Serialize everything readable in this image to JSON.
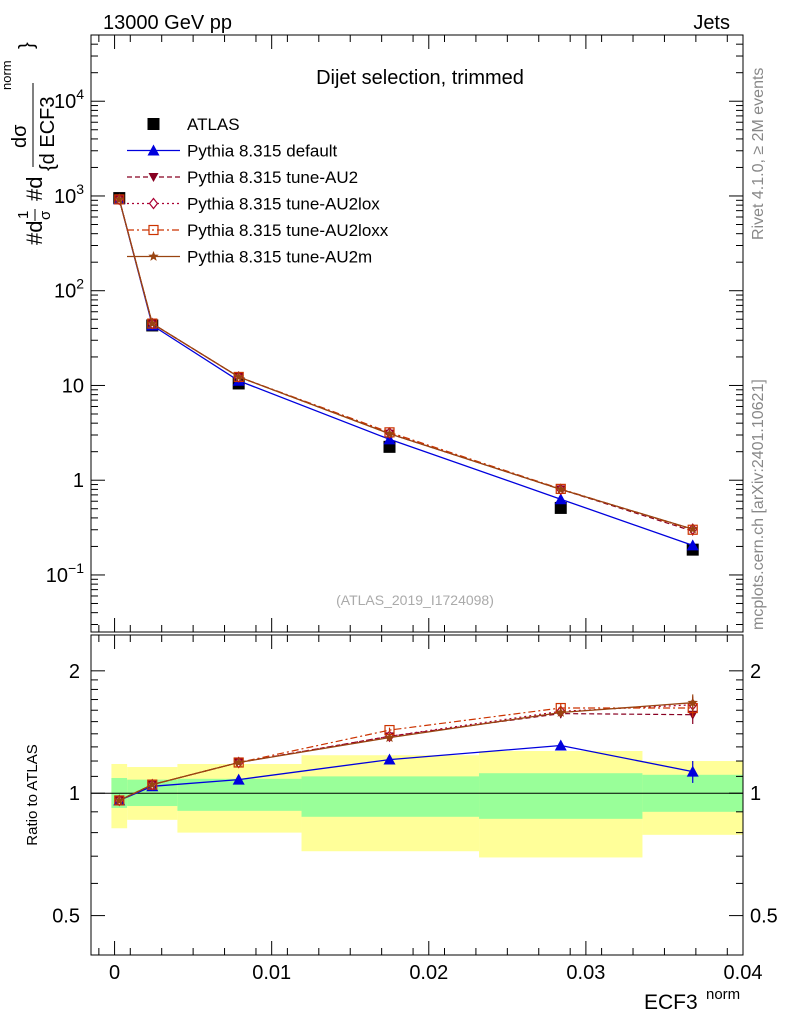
{
  "header": {
    "energy_label": "13000 GeV pp",
    "category_label": "Jets"
  },
  "side_labels": {
    "rivet": "Rivet 4.1.0, ≥ 2M events",
    "mcplots": "mcplots.cern.ch [arXiv:2401.10621]"
  },
  "colors": {
    "data": "#000000",
    "default": "#0000dd",
    "au2": "#880022",
    "au2lox": "#aa0033",
    "au2loxx": "#cc3300",
    "au2m": "#994411",
    "band_inner": "#99ff99",
    "band_outer": "#ffff99"
  },
  "chart_data": [
    {
      "type": "line",
      "title": "Dijet selection, trimmed",
      "watermark": "(ATLAS_2019_I1724098)",
      "ylabel": "1/σ dσ/d ECF3^norm",
      "ylabel_parts": {
        "lead": "#d",
        "frac_num": "1",
        "frac_den": "σ",
        "mid": "#d",
        "big_num": "dσ",
        "big_den": "{d ECF3",
        "sup": "norm",
        "close": "}"
      },
      "yscale": "log",
      "ylim": [
        0.025,
        50000
      ],
      "xlim": [
        -0.0015,
        0.04
      ],
      "ytick_labels": [
        "10−1",
        "1",
        "10",
        "10²",
        "10³",
        "10⁴"
      ],
      "yticks": [
        {
          "value": 0.1,
          "base": "10",
          "exp": "−1"
        },
        {
          "value": 1,
          "base": "1",
          "exp": ""
        },
        {
          "value": 10,
          "base": "10",
          "exp": ""
        },
        {
          "value": 100,
          "base": "10",
          "exp": "2"
        },
        {
          "value": 1000,
          "base": "10",
          "exp": "3"
        },
        {
          "value": 10000,
          "base": "10",
          "exp": "4"
        }
      ],
      "x": [
        0.0003,
        0.0024,
        0.0079,
        0.0175,
        0.0284,
        0.0368
      ],
      "bin_edges": [
        -0.0002,
        0.0008,
        0.004,
        0.0119,
        0.0232,
        0.0336,
        0.04
      ],
      "series": [
        {
          "name": "ATLAS",
          "style": "data",
          "values": [
            950,
            43,
            10.5,
            2.25,
            0.51,
            0.185
          ]
        },
        {
          "name": "Pythia 8.315 default",
          "style": "default",
          "values": [
            920,
            43,
            11.2,
            2.7,
            0.63,
            0.205
          ]
        },
        {
          "name": "Pythia 8.315 tune-AU2",
          "style": "au2",
          "values": [
            920,
            45,
            12.3,
            3.1,
            0.8,
            0.29
          ]
        },
        {
          "name": "Pythia 8.315 tune-AU2lox",
          "style": "au2lox",
          "values": [
            920,
            45,
            12.3,
            3.15,
            0.8,
            0.305
          ]
        },
        {
          "name": "Pythia 8.315 tune-AU2loxx",
          "style": "au2loxx",
          "values": [
            920,
            45,
            12.3,
            3.2,
            0.81,
            0.3
          ]
        },
        {
          "name": "Pythia 8.315 tune-AU2m",
          "style": "au2m",
          "values": [
            920,
            45,
            12.3,
            3.1,
            0.8,
            0.305
          ]
        }
      ]
    },
    {
      "type": "line",
      "title": "",
      "ylabel": "Ratio to ATLAS",
      "xlabel": "ECF3",
      "xlabel_sup": "norm",
      "yscale": "log",
      "ylim": [
        0.4,
        2.45
      ],
      "xlim": [
        -0.0015,
        0.04
      ],
      "yticks": [
        0.5,
        1,
        2
      ],
      "ytick_labels": [
        "0.5",
        "1",
        "2"
      ],
      "xticks": [
        0,
        0.01,
        0.02,
        0.03,
        0.04
      ],
      "xtick_labels": [
        "0",
        "0.01",
        "0.02",
        "0.03",
        "0.04"
      ],
      "x": [
        0.0003,
        0.0024,
        0.0079,
        0.0175,
        0.0284,
        0.0368
      ],
      "bin_edges": [
        -0.0002,
        0.0008,
        0.004,
        0.0119,
        0.0232,
        0.0336,
        0.04
      ],
      "band_inner": [
        [
          0.92,
          1.09
        ],
        [
          0.93,
          1.08
        ],
        [
          0.905,
          1.085
        ],
        [
          0.875,
          1.1
        ],
        [
          0.865,
          1.12
        ],
        [
          0.9,
          1.11
        ]
      ],
      "band_outer": [
        [
          0.82,
          1.18
        ],
        [
          0.86,
          1.16
        ],
        [
          0.8,
          1.18
        ],
        [
          0.72,
          1.24
        ],
        [
          0.695,
          1.27
        ],
        [
          0.79,
          1.2
        ]
      ],
      "series": [
        {
          "name": "Pythia 8.315 default",
          "style": "default",
          "values": [
            0.96,
            1.04,
            1.08,
            1.21,
            1.31,
            1.13
          ],
          "errors": [
            0.015,
            0.015,
            0.015,
            0.015,
            0.03,
            0.07
          ]
        },
        {
          "name": "Pythia 8.315 tune-AU2",
          "style": "au2",
          "values": [
            0.96,
            1.05,
            1.19,
            1.38,
            1.57,
            1.56
          ],
          "errors": [
            0.015,
            0.015,
            0.015,
            0.02,
            0.04,
            0.08
          ]
        },
        {
          "name": "Pythia 8.315 tune-AU2lox",
          "style": "au2lox",
          "values": [
            0.96,
            1.05,
            1.19,
            1.38,
            1.59,
            1.65
          ],
          "errors": [
            0.015,
            0.015,
            0.015,
            0.02,
            0.04,
            0.08
          ]
        },
        {
          "name": "Pythia 8.315 tune-AU2loxx",
          "style": "au2loxx",
          "values": [
            0.96,
            1.05,
            1.19,
            1.43,
            1.62,
            1.62
          ],
          "errors": [
            0.015,
            0.015,
            0.015,
            0.02,
            0.04,
            0.08
          ]
        },
        {
          "name": "Pythia 8.315 tune-AU2m",
          "style": "au2m",
          "values": [
            0.96,
            1.05,
            1.19,
            1.37,
            1.58,
            1.67
          ],
          "errors": [
            0.015,
            0.015,
            0.015,
            0.02,
            0.04,
            0.08
          ]
        }
      ]
    }
  ]
}
